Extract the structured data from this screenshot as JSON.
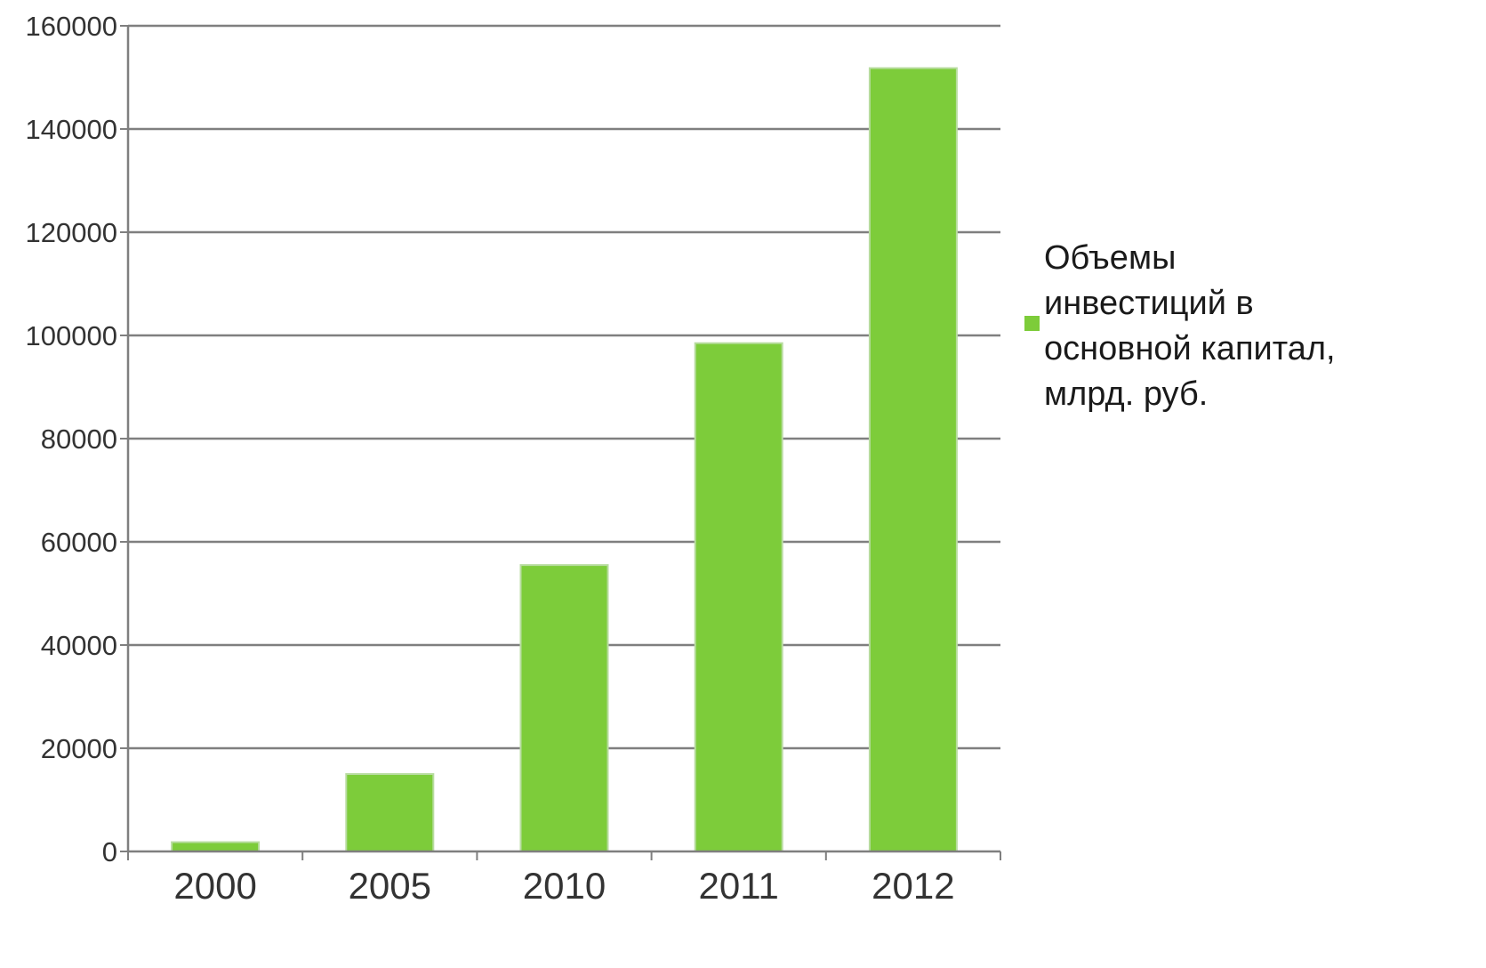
{
  "chart_data": {
    "type": "bar",
    "categories": [
      "2000",
      "2005",
      "2010",
      "2011",
      "2012"
    ],
    "series": [
      {
        "name": "Объемы инвестиций в основной капитал, млрд. руб.",
        "name_lines": [
          "Объемы",
          "инвестиций в",
          "основной капитал,",
          "млрд. руб."
        ],
        "values": [
          1800,
          15000,
          55500,
          98500,
          151800
        ]
      }
    ],
    "yticks": [
      "0",
      "20000",
      "40000",
      "60000",
      "80000",
      "100000",
      "120000",
      "140000",
      "160000"
    ],
    "ylim": [
      0,
      160000
    ],
    "grid": true,
    "legend": "right",
    "bar_color": "#7dcc3a",
    "bar_border_color": "#b8dca0",
    "axis_color": "#7f7f7f",
    "grid_color": "#7f7f7f"
  }
}
